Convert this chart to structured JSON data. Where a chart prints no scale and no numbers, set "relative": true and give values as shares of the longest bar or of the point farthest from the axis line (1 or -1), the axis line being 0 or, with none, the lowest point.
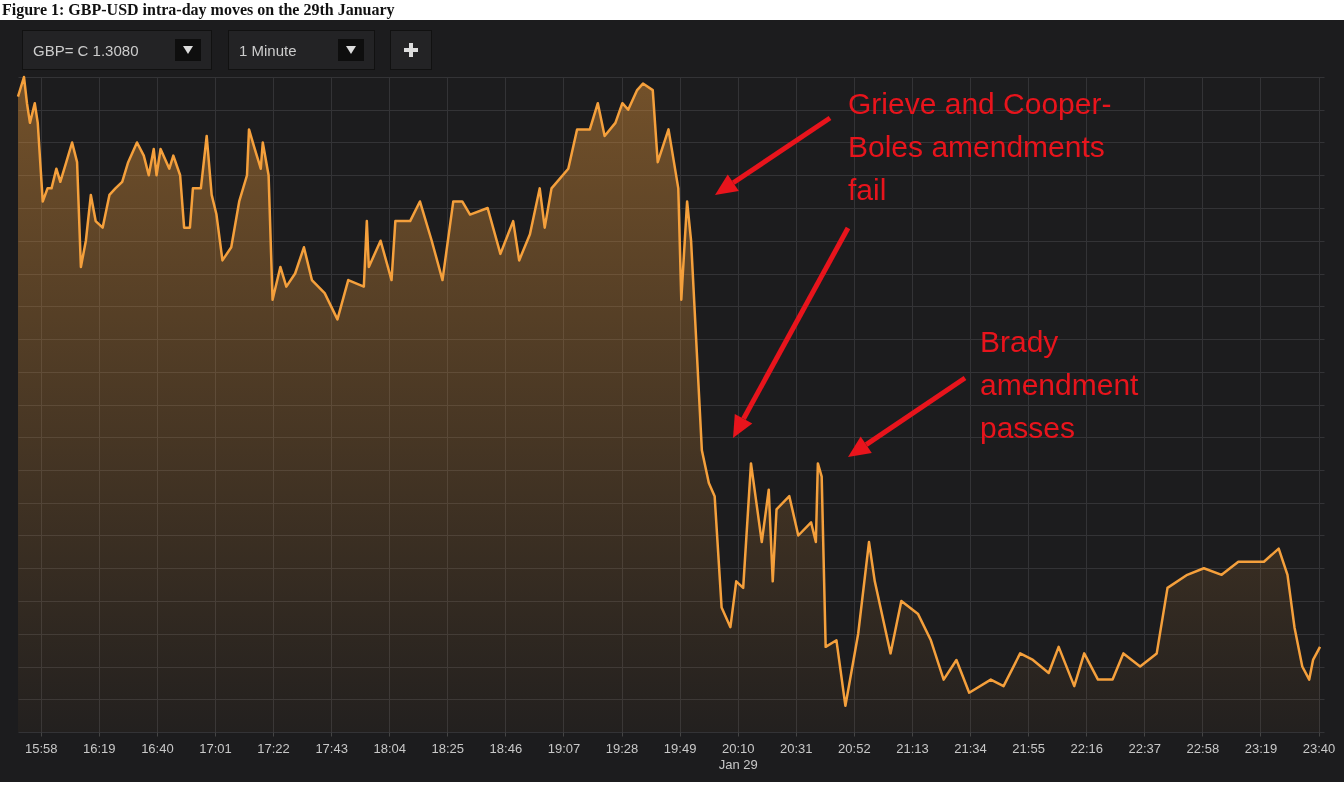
{
  "chart_data": {
    "type": "area",
    "title": "Figure 1: GBP-USD intra-day moves on the 29th January",
    "relative": true,
    "grid": true,
    "xlim": [
      15.83,
      23.7
    ],
    "xticks": [
      {
        "value": 15.967,
        "label": "15:58"
      },
      {
        "value": 16.317,
        "label": "16:19"
      },
      {
        "value": 16.667,
        "label": "16:40"
      },
      {
        "value": 17.017,
        "label": "17:01"
      },
      {
        "value": 17.367,
        "label": "17:22"
      },
      {
        "value": 17.717,
        "label": "17:43"
      },
      {
        "value": 18.067,
        "label": "18:04"
      },
      {
        "value": 18.417,
        "label": "18:25"
      },
      {
        "value": 18.767,
        "label": "18:46"
      },
      {
        "value": 19.117,
        "label": "19:07"
      },
      {
        "value": 19.467,
        "label": "19:28"
      },
      {
        "value": 19.817,
        "label": "19:49"
      },
      {
        "value": 20.167,
        "label": "20:10\nJan 29"
      },
      {
        "value": 20.517,
        "label": "20:31"
      },
      {
        "value": 20.867,
        "label": "20:52"
      },
      {
        "value": 21.217,
        "label": "21:13"
      },
      {
        "value": 21.567,
        "label": "21:34"
      },
      {
        "value": 21.917,
        "label": "21:55"
      },
      {
        "value": 22.267,
        "label": "22:16"
      },
      {
        "value": 22.617,
        "label": "22:37"
      },
      {
        "value": 22.967,
        "label": "22:58"
      },
      {
        "value": 23.317,
        "label": "23:19"
      },
      {
        "value": 23.667,
        "label": "23:40"
      }
    ],
    "annotations": [
      "GBP= C 1.3080",
      "1 Minute",
      "Grieve and Cooper-Boles amendments fail",
      "Brady amendment passes"
    ],
    "series": [
      {
        "color": "#f5a03c",
        "x": [
          15.83,
          15.866,
          15.884,
          15.902,
          15.931,
          15.949,
          15.979,
          16.008,
          16.032,
          16.061,
          16.085,
          16.121,
          16.156,
          16.186,
          16.209,
          16.239,
          16.269,
          16.298,
          16.34,
          16.381,
          16.417,
          16.458,
          16.494,
          16.547,
          16.588,
          16.618,
          16.648,
          16.665,
          16.689,
          16.742,
          16.766,
          16.807,
          16.831,
          16.866,
          16.884,
          16.932,
          16.967,
          16.997,
          17.026,
          17.062,
          17.115,
          17.163,
          17.21,
          17.222,
          17.257,
          17.293,
          17.305,
          17.34,
          17.364,
          17.411,
          17.447,
          17.5,
          17.553,
          17.601,
          17.678,
          17.755,
          17.82,
          17.914,
          17.932,
          17.944,
          18.015,
          18.081,
          18.104,
          18.193,
          18.252,
          18.323,
          18.388,
          18.453,
          18.507,
          18.554,
          18.66,
          18.737,
          18.814,
          18.85,
          18.915,
          18.974,
          19.004,
          19.045,
          19.146,
          19.199,
          19.276,
          19.324,
          19.365,
          19.43,
          19.472,
          19.507,
          19.561,
          19.596,
          19.655,
          19.685,
          19.75,
          19.809,
          19.827,
          19.862,
          19.886,
          19.951,
          19.993,
          20.028,
          20.07,
          20.123,
          20.158,
          20.2,
          20.247,
          20.312,
          20.354,
          20.378,
          20.401,
          20.478,
          20.532,
          20.609,
          20.638,
          20.65,
          20.673,
          20.697,
          20.762,
          20.816,
          20.893,
          20.958,
          20.993,
          21.088,
          21.153,
          21.254,
          21.331,
          21.408,
          21.485,
          21.562,
          21.692,
          21.769,
          21.869,
          21.946,
          22.041,
          22.101,
          22.195,
          22.255,
          22.338,
          22.426,
          22.491,
          22.592,
          22.692,
          22.757,
          22.876,
          22.976,
          23.083,
          23.184,
          23.284,
          23.338,
          23.427,
          23.48,
          23.522,
          23.569,
          23.611,
          23.634,
          23.676
        ],
        "values": [
          0.97,
          1.0,
          0.96,
          0.93,
          0.96,
          0.93,
          0.81,
          0.83,
          0.83,
          0.86,
          0.84,
          0.87,
          0.9,
          0.87,
          0.71,
          0.75,
          0.82,
          0.78,
          0.77,
          0.82,
          0.83,
          0.84,
          0.87,
          0.9,
          0.88,
          0.85,
          0.89,
          0.85,
          0.89,
          0.86,
          0.88,
          0.85,
          0.77,
          0.77,
          0.83,
          0.83,
          0.91,
          0.82,
          0.79,
          0.72,
          0.74,
          0.81,
          0.85,
          0.92,
          0.89,
          0.86,
          0.9,
          0.85,
          0.66,
          0.71,
          0.68,
          0.7,
          0.74,
          0.69,
          0.67,
          0.63,
          0.69,
          0.68,
          0.78,
          0.71,
          0.75,
          0.69,
          0.78,
          0.78,
          0.81,
          0.75,
          0.69,
          0.81,
          0.81,
          0.79,
          0.8,
          0.73,
          0.78,
          0.72,
          0.76,
          0.83,
          0.77,
          0.83,
          0.86,
          0.92,
          0.92,
          0.96,
          0.91,
          0.93,
          0.96,
          0.95,
          0.98,
          0.99,
          0.98,
          0.87,
          0.92,
          0.83,
          0.66,
          0.81,
          0.75,
          0.43,
          0.38,
          0.36,
          0.19,
          0.16,
          0.23,
          0.22,
          0.41,
          0.29,
          0.37,
          0.23,
          0.34,
          0.36,
          0.3,
          0.32,
          0.29,
          0.41,
          0.39,
          0.13,
          0.14,
          0.04,
          0.15,
          0.29,
          0.23,
          0.12,
          0.2,
          0.18,
          0.14,
          0.08,
          0.11,
          0.06,
          0.08,
          0.07,
          0.12,
          0.11,
          0.09,
          0.13,
          0.07,
          0.12,
          0.08,
          0.08,
          0.12,
          0.1,
          0.12,
          0.22,
          0.24,
          0.25,
          0.24,
          0.26,
          0.26,
          0.26,
          0.28,
          0.24,
          0.16,
          0.1,
          0.08,
          0.11,
          0.13
        ]
      }
    ]
  }
}
